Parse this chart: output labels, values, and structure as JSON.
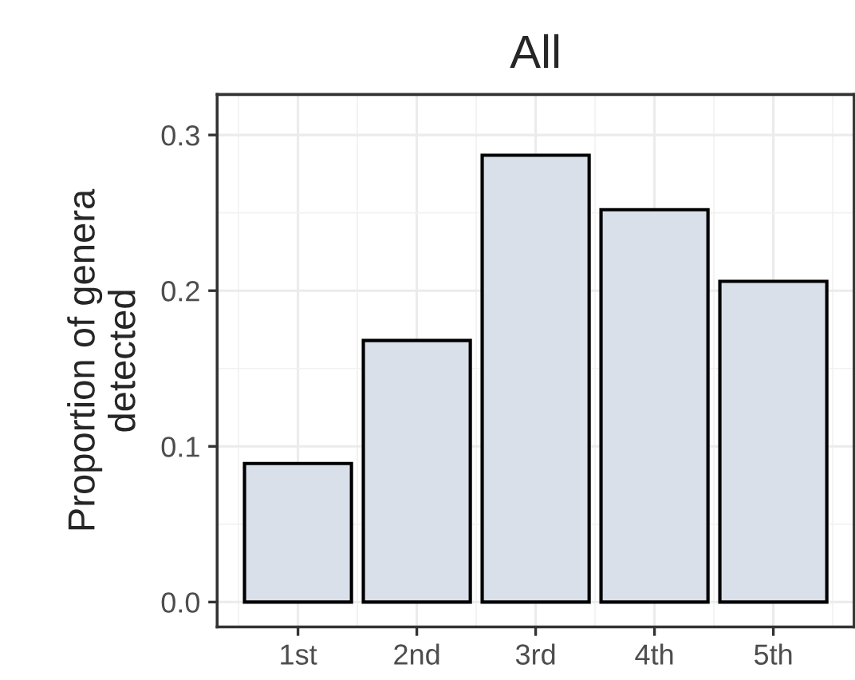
{
  "chart_data": {
    "type": "bar",
    "title": "All",
    "ylabel": "Proportion of genera\ndetected",
    "categories": [
      "1st",
      "2nd",
      "3rd",
      "4th",
      "5th"
    ],
    "values": [
      0.089,
      0.168,
      0.287,
      0.252,
      0.206
    ],
    "color": "#dae0ea",
    "ylim": [
      -0.016,
      0.326
    ],
    "yticks": [
      {
        "value": 0,
        "label": "0.0"
      },
      0.1,
      0.2,
      0.3
    ],
    "grid": true
  }
}
